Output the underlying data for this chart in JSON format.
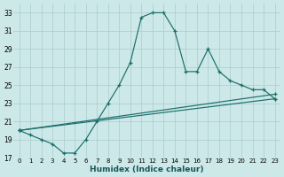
{
  "xlabel": "Humidex (Indice chaleur)",
  "bg_color": "#cce8e8",
  "line_color": "#1a6e6a",
  "grid_color": "#aacccc",
  "xlim_min": -0.5,
  "xlim_max": 23.5,
  "ylim_min": 17,
  "ylim_max": 34,
  "xticks": [
    0,
    1,
    2,
    3,
    4,
    5,
    6,
    7,
    8,
    9,
    10,
    11,
    12,
    13,
    14,
    15,
    16,
    17,
    18,
    19,
    20,
    21,
    22,
    23
  ],
  "yticks": [
    17,
    19,
    21,
    23,
    25,
    27,
    29,
    31,
    33
  ],
  "curve1_x": [
    0,
    1,
    2,
    3,
    4,
    5,
    6,
    7,
    8,
    9,
    10,
    11,
    12,
    13,
    14,
    15,
    16,
    17,
    18,
    19,
    20,
    21,
    22,
    23
  ],
  "curve1_y": [
    20.0,
    19.5,
    19.0,
    18.5,
    17.5,
    17.5,
    19.0,
    21.0,
    23.0,
    25.0,
    27.5,
    32.5,
    33.0,
    33.0,
    31.0,
    26.5,
    26.5,
    29.0,
    26.5,
    25.5,
    25.0,
    24.5,
    24.5,
    23.5
  ],
  "curve2_x": [
    0,
    23
  ],
  "curve2_y": [
    20.0,
    24.0
  ],
  "curve3_x": [
    0,
    23
  ],
  "curve3_y": [
    20.0,
    23.5
  ]
}
